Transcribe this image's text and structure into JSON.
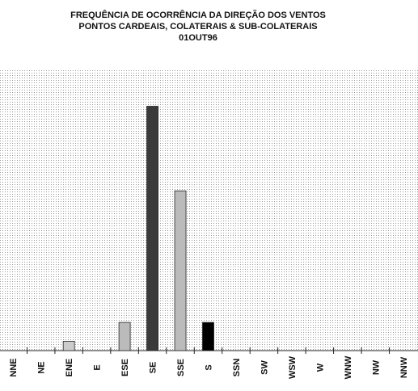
{
  "chart_data": {
    "type": "bar",
    "title": [
      "FREQUÊNCIA DE OCORRÊNCIA DA DIREÇÃO DOS VENTOS",
      "PONTOS CARDEAIS, COLATERAIS & SUB-COLATERAIS",
      "01OUT96"
    ],
    "categories": [
      "NNE",
      "NE",
      "ENE",
      "E",
      "ESE",
      "SE",
      "SSE",
      "S",
      "SSN",
      "SW",
      "WSW",
      "W",
      "WNW",
      "NW",
      "NNW"
    ],
    "values": [
      0,
      0,
      1,
      0,
      3,
      26,
      17,
      3,
      0,
      0,
      0,
      0,
      0,
      0,
      0
    ],
    "colors": [
      "#cccccc",
      "#cccccc",
      "#cccccc",
      "#cccccc",
      "#bbbbbb",
      "#3a3a3a",
      "#bbbbbb",
      "#000000",
      "#cccccc",
      "#cccccc",
      "#cccccc",
      "#cccccc",
      "#cccccc",
      "#cccccc",
      "#cccccc"
    ],
    "ylim": [
      0,
      30
    ]
  }
}
